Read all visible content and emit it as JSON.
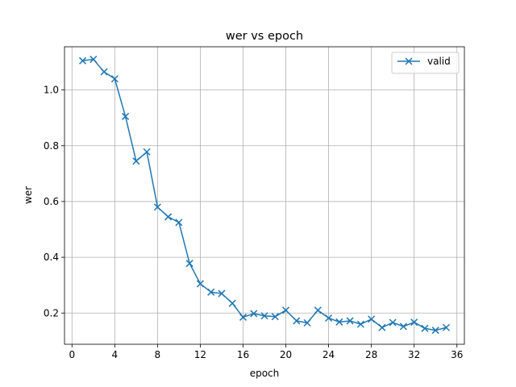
{
  "chart_data": {
    "type": "line",
    "title": "wer vs epoch",
    "xlabel": "epoch",
    "ylabel": "wer",
    "xlim": [
      -0.7,
      36.7
    ],
    "ylim": [
      0.088,
      1.155
    ],
    "xticks": [
      0,
      4,
      8,
      12,
      16,
      20,
      24,
      28,
      32,
      36
    ],
    "yticks": [
      0.2,
      0.4,
      0.6,
      0.8,
      1.0
    ],
    "ytick_labels": [
      "0.2",
      "0.4",
      "0.6",
      "0.8",
      "1.0"
    ],
    "grid": true,
    "legend_position": "upper right",
    "series": [
      {
        "name": "valid",
        "color": "#1f77b4",
        "marker": "x",
        "x": [
          1,
          2,
          3,
          4,
          5,
          6,
          7,
          8,
          9,
          10,
          11,
          12,
          13,
          14,
          15,
          16,
          17,
          18,
          19,
          20,
          21,
          22,
          23,
          24,
          25,
          26,
          27,
          28,
          29,
          30,
          31,
          32,
          33,
          34,
          35
        ],
        "y": [
          1.105,
          1.11,
          1.065,
          1.04,
          0.905,
          0.745,
          0.778,
          0.58,
          0.545,
          0.525,
          0.378,
          0.305,
          0.275,
          0.27,
          0.235,
          0.185,
          0.198,
          0.19,
          0.187,
          0.21,
          0.172,
          0.165,
          0.21,
          0.182,
          0.168,
          0.172,
          0.16,
          0.178,
          0.148,
          0.166,
          0.152,
          0.167,
          0.145,
          0.138,
          0.148
        ]
      }
    ]
  }
}
